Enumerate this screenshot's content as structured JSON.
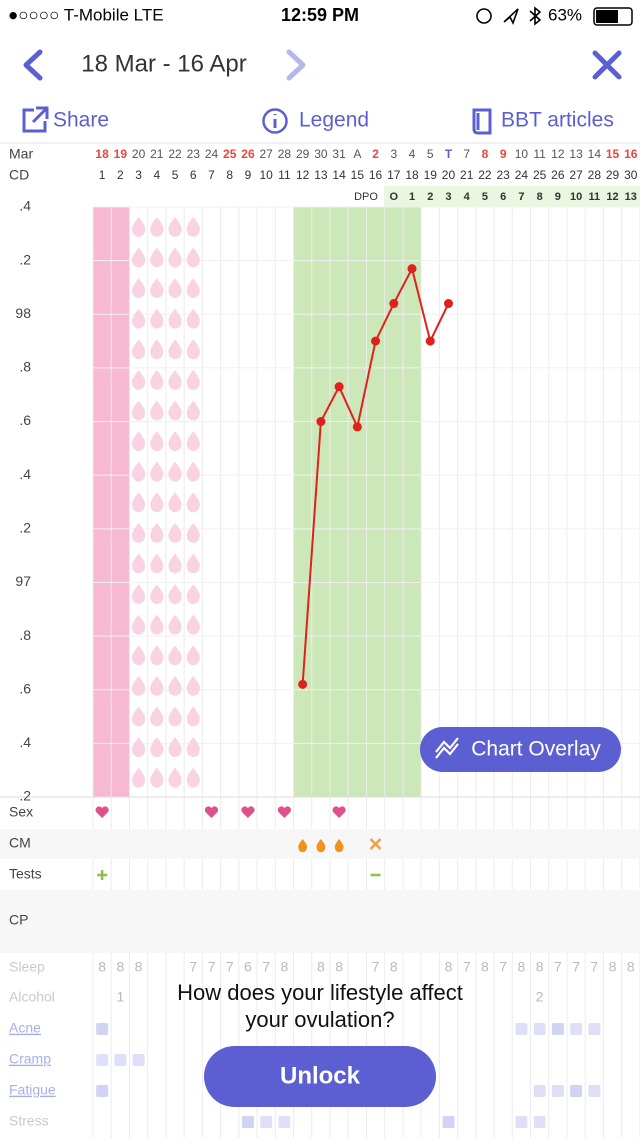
{
  "status_bar": {
    "carrier": "●○○○○ T-Mobile  LTE",
    "time": "12:59 PM",
    "battery": "63%"
  },
  "header": {
    "title": "18 Mar - 16 Apr"
  },
  "toolbar": {
    "share": "Share",
    "legend": "Legend",
    "articles": "BBT articles"
  },
  "calendar": {
    "month": "Mar",
    "days": [
      "18",
      "19",
      "20",
      "21",
      "22",
      "23",
      "24",
      "25",
      "26",
      "27",
      "28",
      "29",
      "30",
      "31",
      "A",
      "2",
      "3",
      "4",
      "5",
      "T",
      "7",
      "8",
      "9",
      "10",
      "11",
      "12",
      "13",
      "14",
      "15",
      "16"
    ],
    "day_colors": [
      "#e8453c",
      "#e8453c",
      "#555",
      "#555",
      "#555",
      "#555",
      "#555",
      "#e8453c",
      "#e8453c",
      "#555",
      "#555",
      "#555",
      "#555",
      "#555",
      "#555",
      "#e8453c",
      "#555",
      "#555",
      "#555",
      "#5b5fd2",
      "#555",
      "#e8453c",
      "#e8453c",
      "#555",
      "#555",
      "#555",
      "#555",
      "#555",
      "#e8453c",
      "#e8453c"
    ],
    "cd_label": "CD",
    "dpo_label": "DPO",
    "dpo": [
      "O",
      "1",
      "2",
      "3",
      "4",
      "5",
      "6",
      "7",
      "8",
      "9",
      "10",
      "11",
      "12",
      "13"
    ]
  },
  "chart_data": {
    "type": "line",
    "categories": [
      1,
      2,
      3,
      4,
      5,
      6,
      7,
      8,
      9,
      10,
      11,
      12,
      13,
      14,
      15,
      16,
      17,
      18,
      19,
      20,
      21,
      22,
      23,
      24,
      25,
      26,
      27,
      28,
      29,
      30
    ],
    "series": [
      {
        "color": "#e0201c",
        "values": [
          null,
          null,
          null,
          null,
          null,
          null,
          null,
          null,
          null,
          null,
          null,
          96.62,
          97.6,
          97.73,
          97.58,
          97.9,
          98.04,
          98.17,
          97.9,
          98.04,
          null,
          null,
          null,
          null,
          null,
          null,
          null,
          null,
          null,
          null
        ]
      }
    ],
    "ylim": [
      96.2,
      98.4
    ],
    "yticks": [
      {
        "value": 96.2,
        "label": ".2"
      },
      {
        "value": 96.4,
        "label": ".4"
      },
      {
        "value": 96.6,
        "label": ".6"
      },
      {
        "value": 96.8,
        "label": ".8"
      },
      97,
      {
        "value": 97.2,
        "label": ".2"
      },
      {
        "value": 97.4,
        "label": ".4"
      },
      {
        "value": 97.6,
        "label": ".6"
      },
      {
        "value": 97.8,
        "label": ".8"
      },
      98,
      {
        "value": 98.2,
        "label": ".2"
      },
      {
        "value": 98.4,
        "label": ".4"
      }
    ],
    "grid": true,
    "overlay_button": "Chart Overlay"
  },
  "rows": {
    "sex": "Sex",
    "cm": "CM",
    "tests": "Tests",
    "cp": "CP"
  },
  "lifestyle": {
    "labels": [
      "Sleep",
      "Alcohol",
      "Acne",
      "Cramp",
      "Fatigue",
      "Stress"
    ],
    "sleep": [
      "8",
      "8",
      "8",
      null,
      null,
      "7",
      "7",
      "7",
      "6",
      "7",
      "8",
      null,
      "8",
      "8",
      null,
      "7",
      "8",
      null,
      null,
      "8",
      "7",
      "8",
      "7",
      "8",
      "8",
      "7",
      "7",
      "7",
      "8",
      "8"
    ],
    "alcohol": [
      null,
      "1",
      null,
      null,
      null,
      null,
      null,
      null,
      null,
      null,
      null,
      null,
      null,
      null,
      null,
      null,
      null,
      null,
      null,
      null,
      null,
      null,
      null,
      null,
      "2",
      null,
      null,
      null,
      null,
      null
    ]
  },
  "promo": {
    "line1": "How does your lifestyle affect",
    "line2": "your ovulation?",
    "button": "Unlock"
  }
}
